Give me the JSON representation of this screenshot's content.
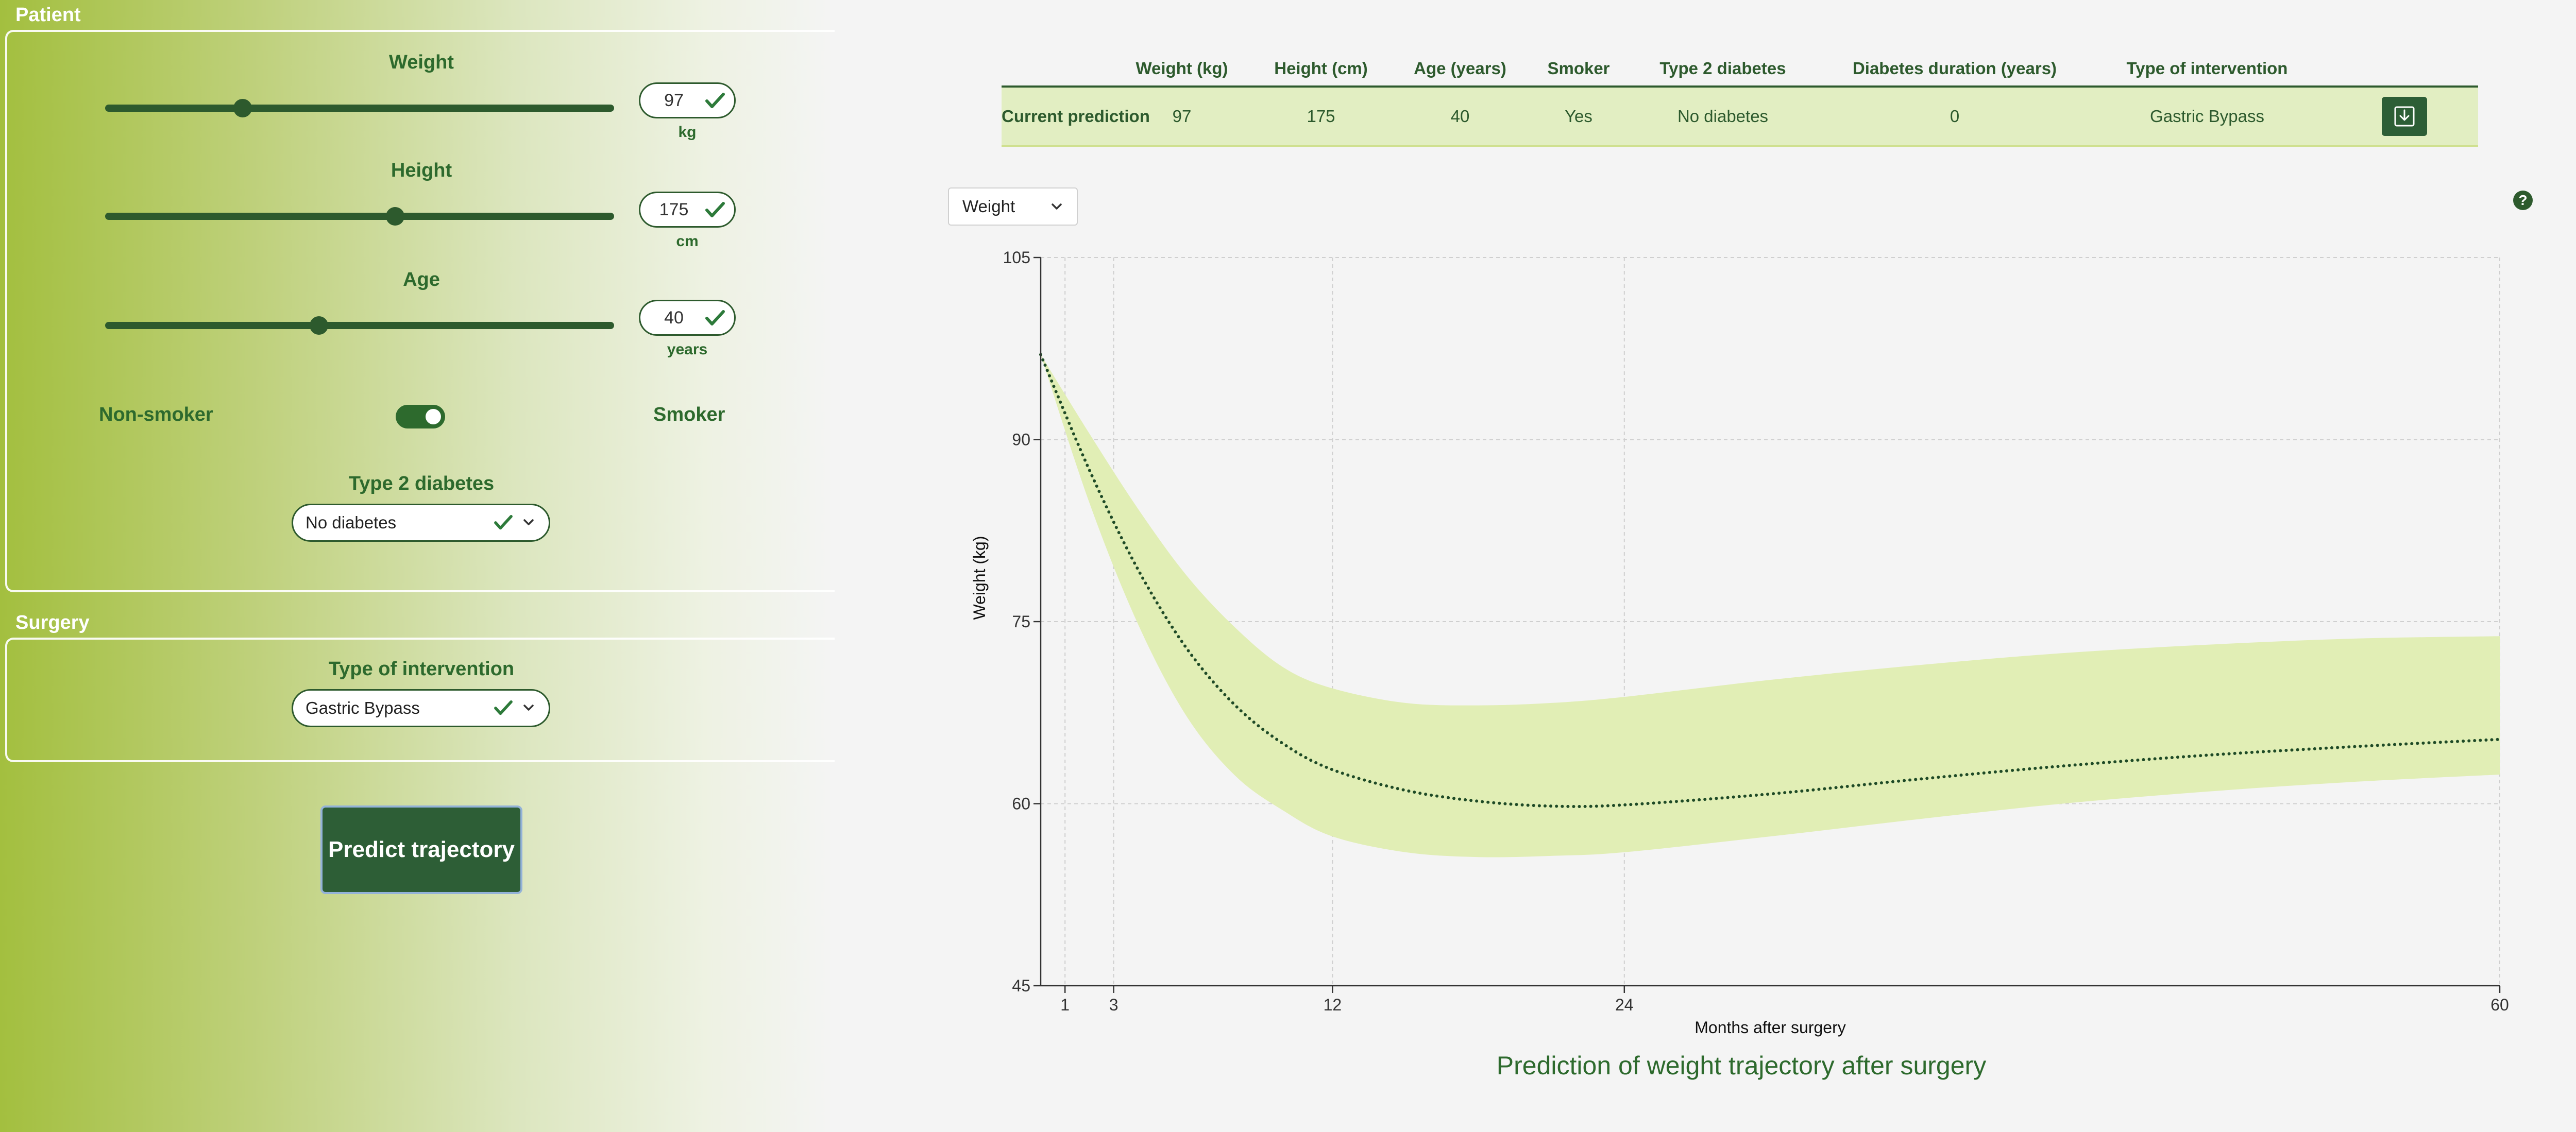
{
  "sections": {
    "patient": "Patient",
    "surgery": "Surgery"
  },
  "patient": {
    "weight": {
      "label": "Weight",
      "value": "97",
      "unit": "kg",
      "slider_fraction": 0.27
    },
    "height": {
      "label": "Height",
      "value": "175",
      "unit": "cm",
      "slider_fraction": 0.57
    },
    "age": {
      "label": "Age",
      "value": "40",
      "unit": "years",
      "slider_fraction": 0.42
    },
    "smoker": {
      "off_label": "Non-smoker",
      "on_label": "Smoker",
      "is_on": true
    },
    "diabetes": {
      "label": "Type 2 diabetes",
      "value": "No diabetes"
    }
  },
  "surgery": {
    "intervention": {
      "label": "Type of intervention",
      "value": "Gastric Bypass"
    }
  },
  "predict_button": "Predict trajectory",
  "table": {
    "headers": [
      "",
      "Weight (kg)",
      "Height (cm)",
      "Age (years)",
      "Smoker",
      "Type 2 diabetes",
      "Diabetes duration (years)",
      "Type of intervention",
      ""
    ],
    "row": {
      "label": "Current prediction",
      "cells": [
        "97",
        "175",
        "40",
        "Yes",
        "No diabetes",
        "0",
        "Gastric Bypass"
      ]
    }
  },
  "metric_select": {
    "value": "Weight"
  },
  "help_icon": "?",
  "colors": {
    "accent": "#2d5a2d",
    "band": "#e1eeb5",
    "panel_gradient_start": "#a3bf3f"
  },
  "chart_data": {
    "type": "line",
    "title": "Prediction of weight trajectory after surgery",
    "xlabel": "Months after surgery",
    "ylabel": "Weight (kg)",
    "xlim": [
      0,
      60
    ],
    "ylim": [
      45,
      105
    ],
    "x_ticks": [
      1,
      3,
      12,
      24,
      60
    ],
    "y_ticks": [
      45,
      60,
      75,
      90,
      105
    ],
    "grid": true,
    "series": [
      {
        "kind": "prediction",
        "x": [
          0,
          2,
          4,
          6,
          8,
          10,
          12,
          15,
          18,
          21,
          24,
          30,
          36,
          42,
          48,
          54,
          60
        ],
        "y": [
          97,
          87.5,
          79.3,
          72.8,
          68.1,
          64.9,
          62.8,
          61.1,
          60.2,
          59.8,
          59.9,
          60.8,
          62.0,
          63.1,
          64.0,
          64.7,
          65.3
        ]
      },
      {
        "kind": "interval_upper",
        "x": [
          0,
          2,
          4,
          6,
          8,
          10,
          12,
          15,
          18,
          21,
          24,
          30,
          36,
          42,
          48,
          54,
          60
        ],
        "y": [
          97,
          90.5,
          84.3,
          78.8,
          74.5,
          71.2,
          69.5,
          68.3,
          68.1,
          68.3,
          68.8,
          70.2,
          71.4,
          72.4,
          73.1,
          73.6,
          73.8
        ]
      },
      {
        "kind": "interval_lower",
        "x": [
          0,
          2,
          4,
          6,
          8,
          10,
          12,
          15,
          18,
          21,
          24,
          30,
          36,
          42,
          48,
          54,
          60
        ],
        "y": [
          97,
          84.8,
          74.8,
          67.2,
          62.3,
          59.4,
          57.3,
          56.0,
          55.6,
          55.7,
          56.0,
          57.3,
          58.7,
          60.0,
          61.0,
          61.8,
          62.4
        ]
      }
    ]
  }
}
